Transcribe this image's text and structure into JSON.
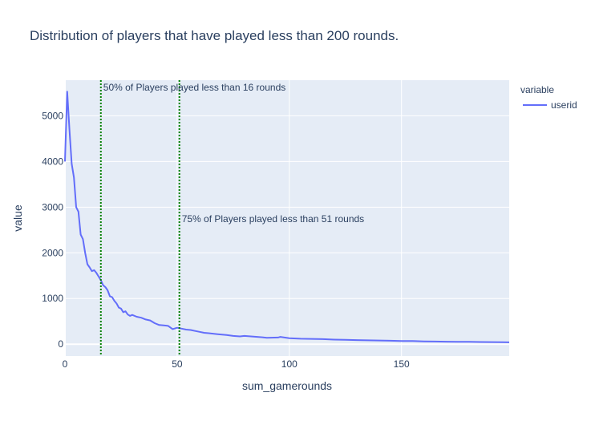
{
  "chart_data": {
    "type": "line",
    "title": "Distribution of players that have played less than 200 rounds.",
    "xlabel": "sum_gamerounds",
    "ylabel": "value",
    "xlim": [
      0,
      198
    ],
    "ylim": [
      -260,
      5780
    ],
    "x_ticks": [
      0,
      50,
      100,
      150
    ],
    "y_ticks": [
      0,
      1000,
      2000,
      3000,
      4000,
      5000
    ],
    "grid": true,
    "legend": {
      "title": "variable",
      "position": "top-right"
    },
    "colors": {
      "plot_bg": "#e5ecf6",
      "series": "#636efa",
      "vline": "#008000"
    },
    "series": [
      {
        "name": "userid",
        "x": [
          0,
          1,
          2,
          3,
          4,
          5,
          6,
          7,
          8,
          9,
          10,
          11,
          12,
          13,
          14,
          15,
          16,
          17,
          18,
          19,
          20,
          21,
          22,
          23,
          24,
          25,
          26,
          27,
          28,
          29,
          30,
          32,
          34,
          36,
          38,
          40,
          42,
          44,
          46,
          48,
          50,
          51,
          52,
          54,
          56,
          58,
          60,
          62,
          64,
          66,
          68,
          70,
          72,
          75,
          78,
          80,
          84,
          88,
          90,
          95,
          96,
          100,
          105,
          110,
          115,
          120,
          125,
          130,
          135,
          140,
          145,
          150,
          155,
          160,
          165,
          170,
          175,
          180,
          185,
          190,
          195,
          198
        ],
        "y": [
          4000,
          5530,
          4700,
          3950,
          3650,
          3000,
          2900,
          2400,
          2300,
          2000,
          1750,
          1680,
          1600,
          1620,
          1560,
          1480,
          1400,
          1290,
          1250,
          1180,
          1050,
          1030,
          950,
          890,
          800,
          780,
          700,
          720,
          650,
          620,
          640,
          600,
          580,
          540,
          520,
          460,
          420,
          410,
          400,
          330,
          360,
          350,
          340,
          320,
          310,
          290,
          270,
          250,
          240,
          230,
          220,
          210,
          200,
          180,
          170,
          180,
          165,
          150,
          140,
          145,
          160,
          130,
          120,
          115,
          110,
          100,
          95,
          90,
          85,
          80,
          75,
          70,
          68,
          62,
          58,
          55,
          52,
          50,
          48,
          45,
          42,
          40
        ]
      }
    ],
    "vlines": [
      {
        "x": 16,
        "label": "50% of Players played less than 16 rounds"
      },
      {
        "x": 51,
        "label": "75% of Players played less than 51 rounds"
      }
    ]
  }
}
